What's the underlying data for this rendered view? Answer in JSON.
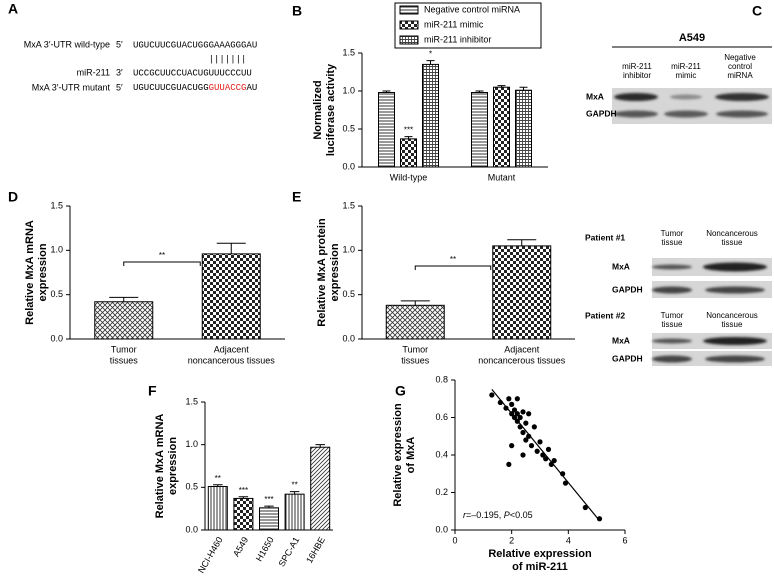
{
  "panel_a": {
    "label": "A",
    "rows": [
      {
        "name": "MxA 3′-UTR wild-type",
        "end": "5′",
        "sequence": [
          "UGUCUUCGUACUGGGAAAGGGAU"
        ]
      },
      {
        "name": "miR-211",
        "end": "3′",
        "sequence": [
          "UCCGCUUCCUACUGUUUCCCUU"
        ]
      },
      {
        "name": "MxA 3′-UTR mutant",
        "end": "5′",
        "sequence": [
          "UGUCUUCGUACUGG",
          "GUUACCG",
          "AU"
        ]
      }
    ],
    "pairing": "|||||||"
  },
  "panel_c": {
    "label": "C",
    "cell_line": "A549",
    "columns": [
      [
        "miR-211",
        "inhibitor"
      ],
      [
        "miR-211",
        "mimic"
      ],
      [
        "Negative",
        "control",
        "miRNA"
      ]
    ],
    "rows": [
      "MxA",
      "GAPDH"
    ],
    "patients": [
      {
        "name": "Patient #1",
        "columns": [
          [
            "Tumor",
            "tissue"
          ],
          [
            "Noncancerous",
            "tissue"
          ]
        ],
        "rows": [
          "MxA",
          "GAPDH"
        ]
      },
      {
        "name": "Patient #2",
        "columns": [
          [
            "Tumor",
            "tissue"
          ],
          [
            "Noncancerous",
            "tissue"
          ]
        ],
        "rows": [
          "MxA",
          "GAPDH"
        ]
      }
    ]
  },
  "chart_data": [
    {
      "panel": "B",
      "type": "bar",
      "ylabel": [
        "Normalized",
        "luciferase activity"
      ],
      "categories": [
        "Wild-type",
        "Mutant"
      ],
      "ylim": [
        0,
        1.5
      ],
      "yticks": [
        {
          "value": 0,
          "label": "0.0"
        },
        0.5,
        {
          "value": 1,
          "label": "1.0"
        },
        1.5
      ],
      "series": [
        {
          "name": "Negative control miRNA",
          "pattern": "hlines",
          "values": [
            0.98,
            0.98
          ],
          "errors": [
            0.02,
            0.02
          ],
          "annotations": [
            null,
            null
          ]
        },
        {
          "name": "miR-211 mimic",
          "pattern": "checker",
          "values": [
            0.37,
            1.05
          ],
          "errors": [
            0.03,
            0.02
          ],
          "annotations": [
            "***",
            null
          ]
        },
        {
          "name": "miR-211 inhibitor",
          "pattern": "grid",
          "values": [
            1.35,
            1.01
          ],
          "errors": [
            0.05,
            0.04
          ],
          "annotations": [
            "*",
            null
          ]
        }
      ]
    },
    {
      "panel": "D",
      "type": "bar",
      "ylabel": [
        "Relative MxA mRNA",
        "expression"
      ],
      "categories": [
        [
          "Tumor",
          "tissues"
        ],
        [
          "Adjacent",
          "noncancerous tissues"
        ]
      ],
      "ylim": [
        0,
        1.5
      ],
      "yticks": [
        {
          "value": 0,
          "label": "0.0"
        },
        0.5,
        {
          "value": 1,
          "label": "1.0"
        },
        1.5
      ],
      "patterns": [
        "crosshatch",
        "checker"
      ],
      "series": [
        {
          "values": [
            0.42,
            0.96
          ],
          "errors": [
            0.05,
            0.12
          ]
        }
      ],
      "brackets": [
        {
          "label": "**"
        }
      ]
    },
    {
      "panel": "E",
      "type": "bar",
      "ylabel": [
        "Relative MxA protein",
        "expression"
      ],
      "categories": [
        [
          "Tumor",
          "tissues"
        ],
        [
          "Adjacent",
          "noncancerous tissues"
        ]
      ],
      "ylim": [
        0,
        1.5
      ],
      "yticks": [
        {
          "value": 0,
          "label": "0.0"
        },
        0.5,
        {
          "value": 1,
          "label": "1.0"
        },
        1.5
      ],
      "patterns": [
        "crosshatch",
        "checker"
      ],
      "series": [
        {
          "values": [
            0.38,
            1.05
          ],
          "errors": [
            0.05,
            0.07
          ]
        }
      ],
      "brackets": [
        {
          "label": "**"
        }
      ]
    },
    {
      "panel": "F",
      "type": "bar",
      "ylabel": [
        "Relative MxA mRNA",
        "expression"
      ],
      "categories": [
        "NCI-H460",
        "A549",
        "H1650",
        "SPC-A1",
        "16HBE"
      ],
      "ylim": [
        0,
        1.5
      ],
      "yticks": [
        {
          "value": 0,
          "label": "0.0"
        },
        0.5,
        {
          "value": 1,
          "label": "1.0"
        },
        1.5
      ],
      "patterns": [
        "vlines",
        "checker",
        "hlines",
        "vlines",
        "diag"
      ],
      "series": [
        {
          "values": [
            0.51,
            0.37,
            0.26,
            0.42,
            0.97
          ],
          "errors": [
            0.02,
            0.02,
            0.02,
            0.03,
            0.03
          ],
          "annotations": [
            "**",
            "***",
            "***",
            "**",
            null
          ]
        }
      ]
    },
    {
      "panel": "G",
      "type": "scatter",
      "xlabel": [
        "Relative expression",
        "of miR-211"
      ],
      "ylabel": [
        "Relative expression",
        "of MxA"
      ],
      "xlim": [
        0,
        6
      ],
      "ylim": [
        0,
        0.8
      ],
      "xticks": [
        0,
        2,
        4,
        6
      ],
      "yticks": [
        {
          "value": 0,
          "label": "0.0"
        },
        0.2,
        0.4,
        0.6,
        0.8
      ],
      "x": [
        1.3,
        1.6,
        1.8,
        1.9,
        2.0,
        2.0,
        2.1,
        2.1,
        2.2,
        2.2,
        2.3,
        2.3,
        2.4,
        2.4,
        2.5,
        2.5,
        2.6,
        2.7,
        2.8,
        2.9,
        3.0,
        3.1,
        3.2,
        3.3,
        3.4,
        3.5,
        2.0,
        2.4,
        1.9,
        2.2,
        3.8,
        3.9,
        4.6,
        5.1,
        2.6
      ],
      "y": [
        0.72,
        0.68,
        0.65,
        0.7,
        0.62,
        0.67,
        0.6,
        0.64,
        0.58,
        0.62,
        0.55,
        0.6,
        0.63,
        0.52,
        0.57,
        0.48,
        0.5,
        0.45,
        0.55,
        0.42,
        0.47,
        0.4,
        0.38,
        0.43,
        0.35,
        0.37,
        0.45,
        0.4,
        0.35,
        0.7,
        0.3,
        0.25,
        0.12,
        0.06,
        0.62
      ],
      "fit": {
        "x": [
          1.3,
          5.1
        ],
        "y": [
          0.75,
          0.05
        ]
      },
      "annotation": [
        "r",
        "=–0.195, ",
        "P",
        "<0.05"
      ]
    }
  ]
}
